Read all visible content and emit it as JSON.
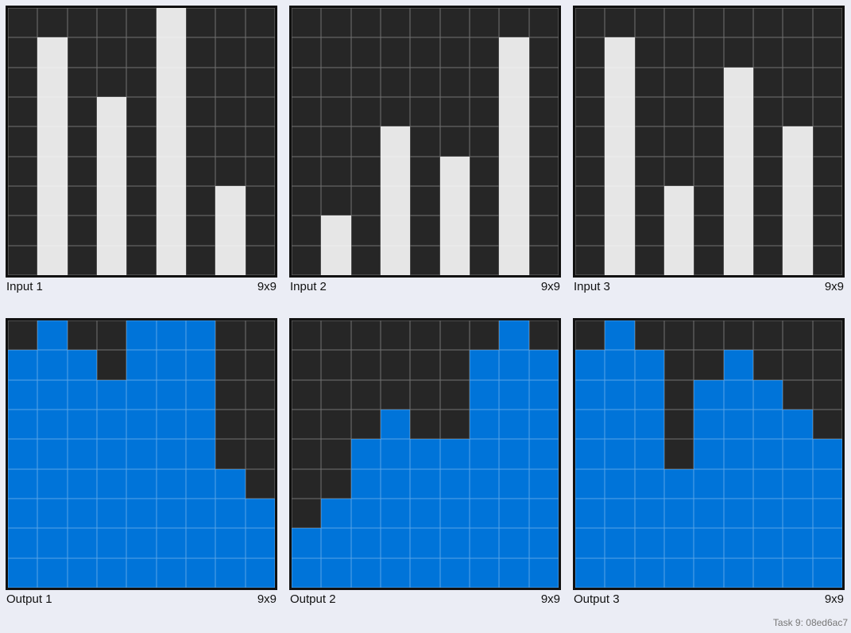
{
  "colors": {
    "0": "#262626",
    "1": "#0074d9",
    "5": "#e6e6e6"
  },
  "panels": [
    {
      "label": "Input 1",
      "size": "9x9",
      "grid": [
        [
          0,
          0,
          0,
          0,
          0,
          5,
          0,
          0,
          0
        ],
        [
          0,
          5,
          0,
          0,
          0,
          5,
          0,
          0,
          0
        ],
        [
          0,
          5,
          0,
          0,
          0,
          5,
          0,
          0,
          0
        ],
        [
          0,
          5,
          0,
          5,
          0,
          5,
          0,
          0,
          0
        ],
        [
          0,
          5,
          0,
          5,
          0,
          5,
          0,
          0,
          0
        ],
        [
          0,
          5,
          0,
          5,
          0,
          5,
          0,
          0,
          0
        ],
        [
          0,
          5,
          0,
          5,
          0,
          5,
          0,
          5,
          0
        ],
        [
          0,
          5,
          0,
          5,
          0,
          5,
          0,
          5,
          0
        ],
        [
          0,
          5,
          0,
          5,
          0,
          5,
          0,
          5,
          0
        ]
      ]
    },
    {
      "label": "Input 2",
      "size": "9x9",
      "grid": [
        [
          0,
          0,
          0,
          0,
          0,
          0,
          0,
          0,
          0
        ],
        [
          0,
          0,
          0,
          0,
          0,
          0,
          0,
          5,
          0
        ],
        [
          0,
          0,
          0,
          0,
          0,
          0,
          0,
          5,
          0
        ],
        [
          0,
          0,
          0,
          0,
          0,
          0,
          0,
          5,
          0
        ],
        [
          0,
          0,
          0,
          5,
          0,
          0,
          0,
          5,
          0
        ],
        [
          0,
          0,
          0,
          5,
          0,
          5,
          0,
          5,
          0
        ],
        [
          0,
          0,
          0,
          5,
          0,
          5,
          0,
          5,
          0
        ],
        [
          0,
          5,
          0,
          5,
          0,
          5,
          0,
          5,
          0
        ],
        [
          0,
          5,
          0,
          5,
          0,
          5,
          0,
          5,
          0
        ]
      ]
    },
    {
      "label": "Input 3",
      "size": "9x9",
      "grid": [
        [
          0,
          0,
          0,
          0,
          0,
          0,
          0,
          0,
          0
        ],
        [
          0,
          5,
          0,
          0,
          0,
          0,
          0,
          0,
          0
        ],
        [
          0,
          5,
          0,
          0,
          0,
          5,
          0,
          0,
          0
        ],
        [
          0,
          5,
          0,
          0,
          0,
          5,
          0,
          0,
          0
        ],
        [
          0,
          5,
          0,
          0,
          0,
          5,
          0,
          5,
          0
        ],
        [
          0,
          5,
          0,
          0,
          0,
          5,
          0,
          5,
          0
        ],
        [
          0,
          5,
          0,
          5,
          0,
          5,
          0,
          5,
          0
        ],
        [
          0,
          5,
          0,
          5,
          0,
          5,
          0,
          5,
          0
        ],
        [
          0,
          5,
          0,
          5,
          0,
          5,
          0,
          5,
          0
        ]
      ]
    },
    {
      "label": "Output 1",
      "size": "9x9",
      "grid": [
        [
          0,
          1,
          0,
          0,
          1,
          1,
          1,
          0,
          0
        ],
        [
          1,
          1,
          1,
          0,
          1,
          1,
          1,
          0,
          0
        ],
        [
          1,
          1,
          1,
          1,
          1,
          1,
          1,
          0,
          0
        ],
        [
          1,
          1,
          1,
          1,
          1,
          1,
          1,
          0,
          0
        ],
        [
          1,
          1,
          1,
          1,
          1,
          1,
          1,
          0,
          0
        ],
        [
          1,
          1,
          1,
          1,
          1,
          1,
          1,
          1,
          0
        ],
        [
          1,
          1,
          1,
          1,
          1,
          1,
          1,
          1,
          1
        ],
        [
          1,
          1,
          1,
          1,
          1,
          1,
          1,
          1,
          1
        ],
        [
          1,
          1,
          1,
          1,
          1,
          1,
          1,
          1,
          1
        ]
      ]
    },
    {
      "label": "Output 2",
      "size": "9x9",
      "grid": [
        [
          0,
          0,
          0,
          0,
          0,
          0,
          0,
          1,
          0
        ],
        [
          0,
          0,
          0,
          0,
          0,
          0,
          1,
          1,
          1
        ],
        [
          0,
          0,
          0,
          0,
          0,
          0,
          1,
          1,
          1
        ],
        [
          0,
          0,
          0,
          1,
          0,
          0,
          1,
          1,
          1
        ],
        [
          0,
          0,
          1,
          1,
          1,
          1,
          1,
          1,
          1
        ],
        [
          0,
          0,
          1,
          1,
          1,
          1,
          1,
          1,
          1
        ],
        [
          0,
          1,
          1,
          1,
          1,
          1,
          1,
          1,
          1
        ],
        [
          1,
          1,
          1,
          1,
          1,
          1,
          1,
          1,
          1
        ],
        [
          1,
          1,
          1,
          1,
          1,
          1,
          1,
          1,
          1
        ]
      ]
    },
    {
      "label": "Output 3",
      "size": "9x9",
      "grid": [
        [
          0,
          1,
          0,
          0,
          0,
          0,
          0,
          0,
          0
        ],
        [
          1,
          1,
          1,
          0,
          0,
          1,
          0,
          0,
          0
        ],
        [
          1,
          1,
          1,
          0,
          1,
          1,
          1,
          0,
          0
        ],
        [
          1,
          1,
          1,
          0,
          1,
          1,
          1,
          1,
          0
        ],
        [
          1,
          1,
          1,
          0,
          1,
          1,
          1,
          1,
          1
        ],
        [
          1,
          1,
          1,
          1,
          1,
          1,
          1,
          1,
          1
        ],
        [
          1,
          1,
          1,
          1,
          1,
          1,
          1,
          1,
          1
        ],
        [
          1,
          1,
          1,
          1,
          1,
          1,
          1,
          1,
          1
        ],
        [
          1,
          1,
          1,
          1,
          1,
          1,
          1,
          1,
          1
        ]
      ]
    }
  ],
  "footer": "Task 9: 08ed6ac7"
}
